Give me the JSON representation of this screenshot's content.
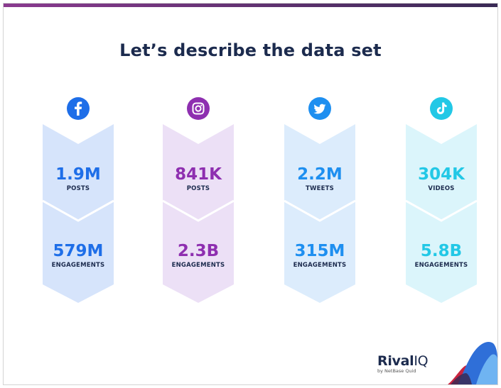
{
  "header": {
    "title": "Let’s describe the data set"
  },
  "colors": {
    "title": "#1c2b4e",
    "bar_left": "#8a3a8f",
    "bar_right": "#3a2a55"
  },
  "platforms": [
    {
      "icon": "facebook-icon",
      "accent": "#1e6ee8",
      "banner": "#d6e4fb",
      "stat1": {
        "value": "1.9M",
        "label": "POSTS"
      },
      "stat2": {
        "value": "579M",
        "label": "ENGAGEMENTS"
      }
    },
    {
      "icon": "instagram-icon",
      "accent": "#8e2fb0",
      "banner": "#ece0f6",
      "stat1": {
        "value": "841K",
        "label": "POSTS"
      },
      "stat2": {
        "value": "2.3B",
        "label": "ENGAGEMENTS"
      }
    },
    {
      "icon": "twitter-icon",
      "accent": "#1e8ff0",
      "banner": "#dcecfc",
      "stat1": {
        "value": "2.2M",
        "label": "TWEETS"
      },
      "stat2": {
        "value": "315M",
        "label": "ENGAGEMENTS"
      }
    },
    {
      "icon": "tiktok-icon",
      "accent": "#22c8e6",
      "banner": "#dbf5fb",
      "stat1": {
        "value": "304K",
        "label": "VIDEOS"
      },
      "stat2": {
        "value": "5.8B",
        "label": "ENGAGEMENTS"
      }
    }
  ],
  "logo": {
    "brand_a": "Rival",
    "brand_b": "IQ",
    "sub": "by NetBase Quid"
  }
}
